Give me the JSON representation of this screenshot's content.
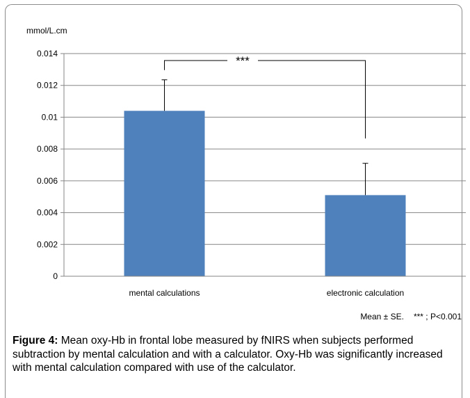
{
  "chart_data": {
    "type": "bar",
    "ylabel": "mmol/L.cm",
    "categories": [
      "mental calculations",
      "electronic calculation"
    ],
    "values": [
      0.0104,
      0.0051
    ],
    "errors": [
      0.00195,
      0.002
    ],
    "ylim": [
      0,
      0.014
    ],
    "yticks": [
      "0",
      "0.002",
      "0.004",
      "0.006",
      "0.008",
      "0.01",
      "0.012",
      "0.014"
    ],
    "ytick_values": [
      0,
      0.002,
      0.004,
      0.006,
      0.008,
      0.01,
      0.012,
      0.014
    ],
    "grid": true,
    "bar_color": "#4f81bd",
    "significance": {
      "label": "***",
      "between": [
        "mental calculations",
        "electronic calculation"
      ]
    }
  },
  "note": {
    "mean_se": "Mean ± SE.",
    "p_value": "*** ; P<0.001"
  },
  "caption": {
    "label": "Figure 4:",
    "text": " Mean oxy-Hb in frontal lobe measured by fNIRS when subjects performed subtraction by mental calculation and with a calculator. Oxy-Hb was significantly increased with mental calculation compared with use of the calculator."
  }
}
